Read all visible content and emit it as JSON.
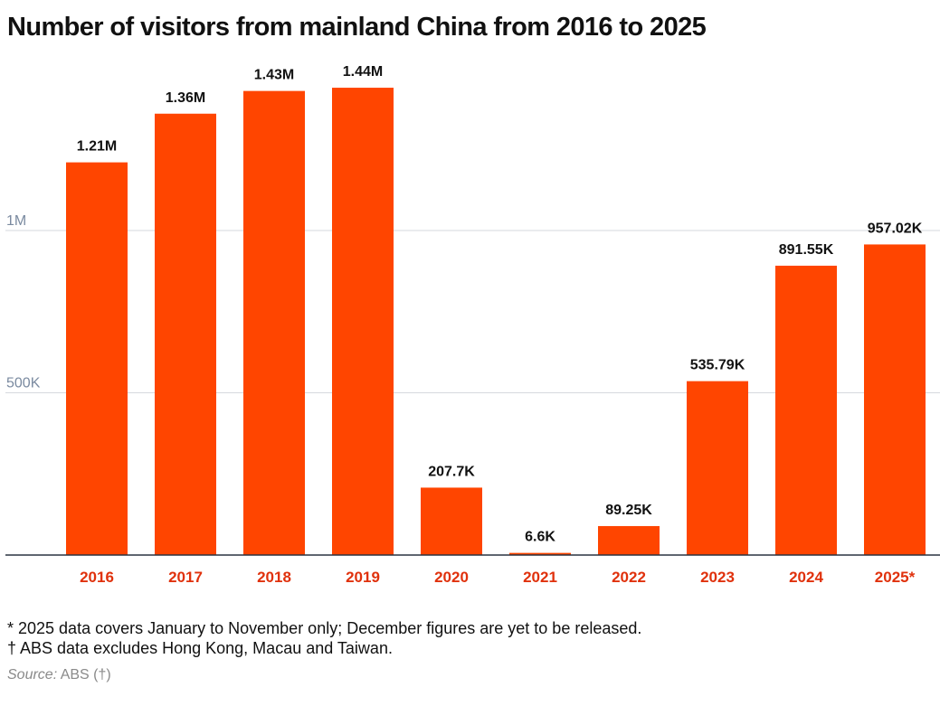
{
  "chart_data": {
    "type": "bar",
    "title": "Number of visitors from mainland China from 2016 to 2025",
    "categories": [
      "2016",
      "2017",
      "2018",
      "2019",
      "2020",
      "2021",
      "2022",
      "2023",
      "2024",
      "2025*"
    ],
    "values": [
      1210000,
      1360000,
      1430000,
      1440000,
      207700,
      6600,
      89250,
      535790,
      891550,
      957020
    ],
    "value_labels": [
      "1.21M",
      "1.36M",
      "1.43M",
      "1.44M",
      "207.7K",
      "6.6K",
      "89.25K",
      "535.79K",
      "891.55K",
      "957.02K"
    ],
    "y_ticks": [
      500000,
      1000000
    ],
    "y_tick_labels": [
      "500K",
      "1M"
    ],
    "ylim": [
      0,
      1500000
    ],
    "xlabel": "",
    "ylabel": "",
    "grid": true,
    "bar_color": "#ff4500",
    "tick_label_color": "#e0310c",
    "axis_label_color": "#7a8aa0"
  },
  "notes": [
    "* 2025 data covers January to November only; December figures are yet to be released.",
    "† ABS data excludes Hong Kong, Macau and Taiwan."
  ],
  "source": {
    "label": "Source:",
    "text": "ABS (†)"
  }
}
